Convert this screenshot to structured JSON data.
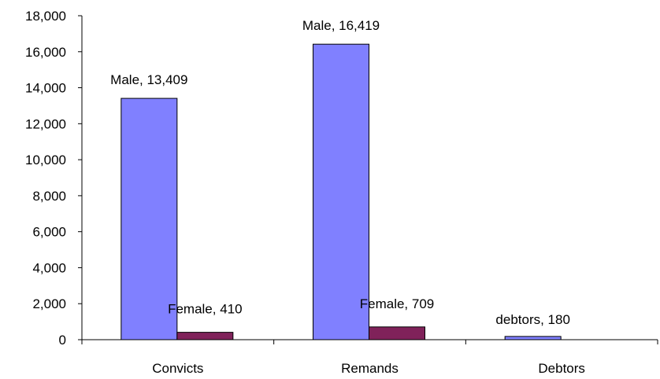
{
  "chart_data": {
    "type": "bar",
    "categories": [
      "Convicts",
      "Remands",
      "Debtors"
    ],
    "series": [
      {
        "name": "Male",
        "color": "#8080FF",
        "values": [
          13409,
          16419,
          null
        ]
      },
      {
        "name": "Female",
        "color": "#80225A",
        "values": [
          410,
          709,
          null
        ]
      },
      {
        "name": "debtors",
        "color": "#8080FF",
        "values": [
          null,
          null,
          180
        ]
      }
    ],
    "data_labels": [
      {
        "category": "Convicts",
        "series": "Male",
        "text": "Male, 13,409"
      },
      {
        "category": "Convicts",
        "series": "Female",
        "text": "Female, 410"
      },
      {
        "category": "Remands",
        "series": "Male",
        "text": "Male, 16,419"
      },
      {
        "category": "Remands",
        "series": "Female",
        "text": "Female, 709"
      },
      {
        "category": "Debtors",
        "series": "debtors",
        "text": "debtors, 180"
      }
    ],
    "yticks": [
      "0",
      "2,000",
      "4,000",
      "6,000",
      "8,000",
      "10,000",
      "12,000",
      "14,000",
      "16,000",
      "18,000"
    ],
    "ylim": [
      0,
      18000
    ],
    "title": "",
    "xlabel": "",
    "ylabel": "",
    "grid": false,
    "legend": "none"
  }
}
